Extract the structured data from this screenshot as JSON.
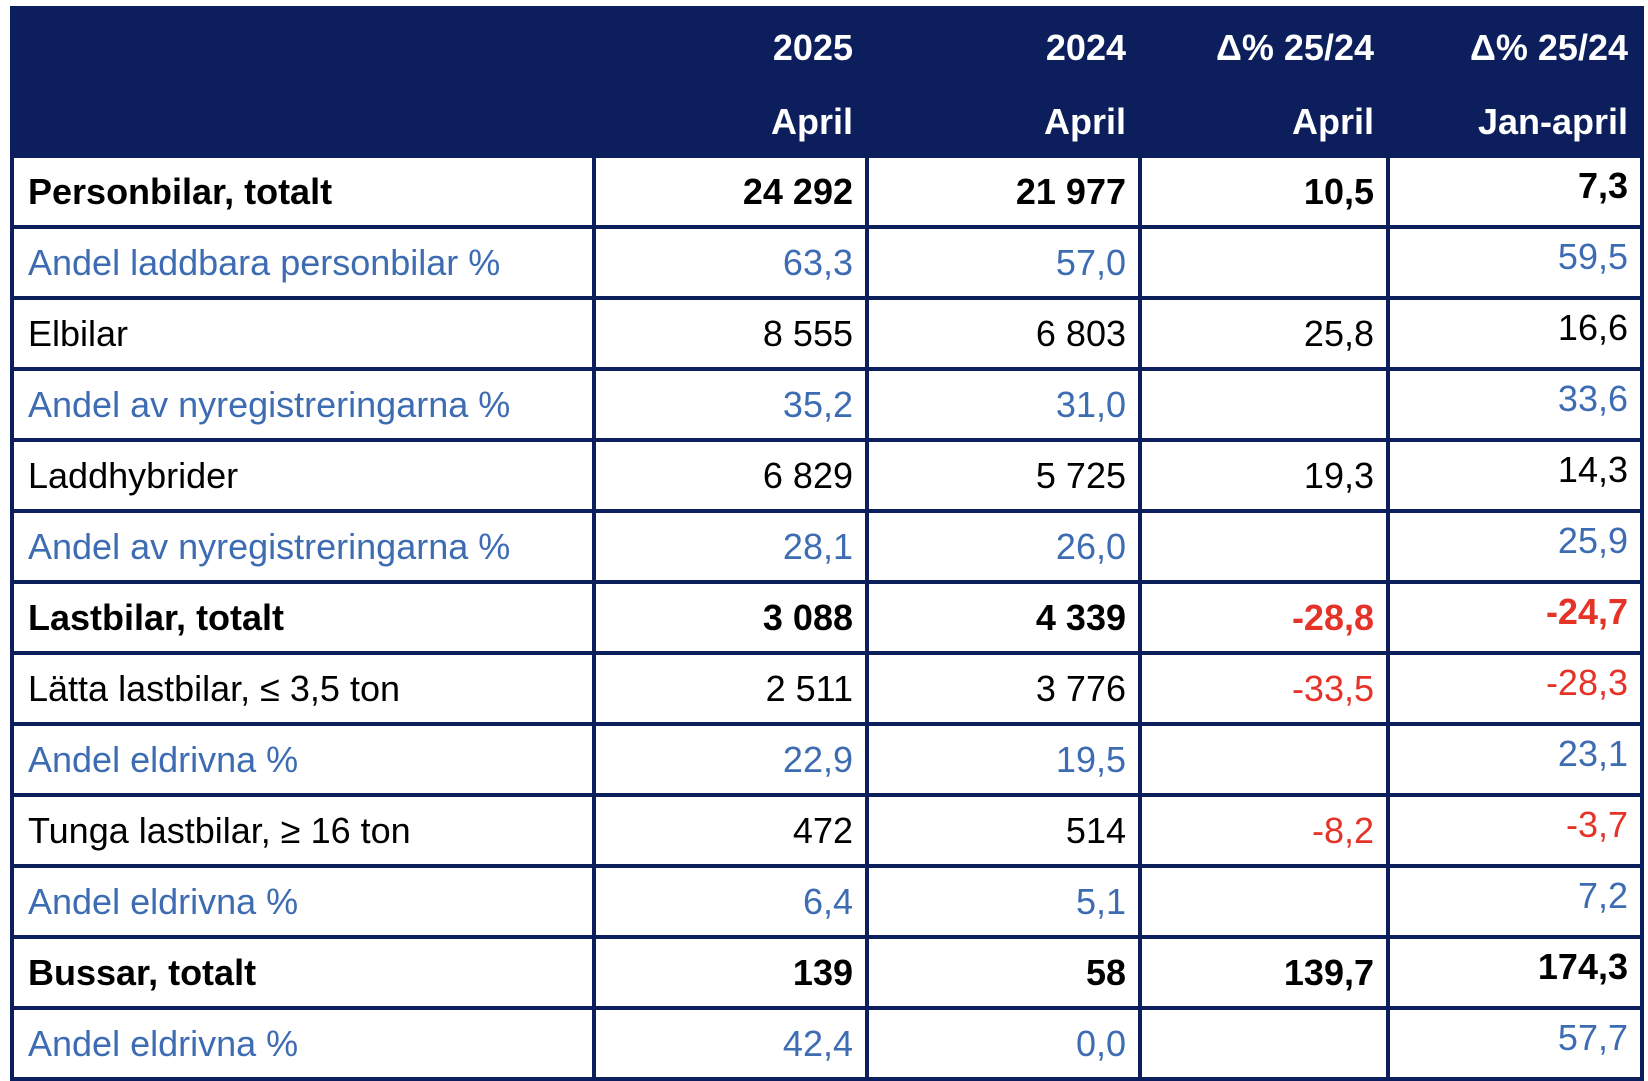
{
  "header": {
    "row1": [
      "",
      "2025",
      "2024",
      "Δ% 25/24",
      "Δ% 25/24"
    ],
    "row2": [
      "",
      "April",
      "April",
      "April",
      "Jan-april"
    ]
  },
  "rows": [
    {
      "label": "Personbilar, totalt",
      "values": [
        "24 292",
        "21 977",
        "10,5",
        "7,3"
      ],
      "style": "bold"
    },
    {
      "label": "Andel laddbara personbilar %",
      "values": [
        "63,3",
        "57,0",
        "",
        "59,5"
      ],
      "style": "share"
    },
    {
      "label": "Elbilar",
      "values": [
        "8 555",
        "6 803",
        "25,8",
        "16,6"
      ],
      "style": "normal"
    },
    {
      "label": "Andel av nyregistreringarna %",
      "values": [
        "35,2",
        "31,0",
        "",
        "33,6"
      ],
      "style": "share"
    },
    {
      "label": "Laddhybrider",
      "values": [
        "6 829",
        "5 725",
        "19,3",
        "14,3"
      ],
      "style": "normal"
    },
    {
      "label": "Andel av nyregistreringarna %",
      "values": [
        "28,1",
        "26,0",
        "",
        "25,9"
      ],
      "style": "share"
    },
    {
      "label": "Lastbilar, totalt",
      "values": [
        "3 088",
        "4 339",
        "-28,8",
        "-24,7"
      ],
      "style": "bold"
    },
    {
      "label": "Lätta lastbilar, ≤ 3,5 ton",
      "values": [
        "2 511",
        "3 776",
        "-33,5",
        "-28,3"
      ],
      "style": "normal"
    },
    {
      "label": "Andel eldrivna %",
      "values": [
        "22,9",
        "19,5",
        "",
        "23,1"
      ],
      "style": "share"
    },
    {
      "label": "Tunga lastbilar, ≥ 16 ton",
      "values": [
        "472",
        "514",
        "-8,2",
        "-3,7"
      ],
      "style": "normal"
    },
    {
      "label": "Andel eldrivna %",
      "values": [
        "6,4",
        "5,1",
        "",
        "7,2"
      ],
      "style": "share"
    },
    {
      "label": "Bussar, totalt",
      "values": [
        "139",
        "58",
        "139,7",
        "174,3"
      ],
      "style": "bold"
    },
    {
      "label": "Andel eldrivna %",
      "values": [
        "42,4",
        "0,0",
        "",
        "57,7"
      ],
      "style": "share"
    }
  ],
  "colors": {
    "header_bg": "#0c1f5c",
    "share_text": "#3d6cb3",
    "negative_text": "#e53328"
  }
}
